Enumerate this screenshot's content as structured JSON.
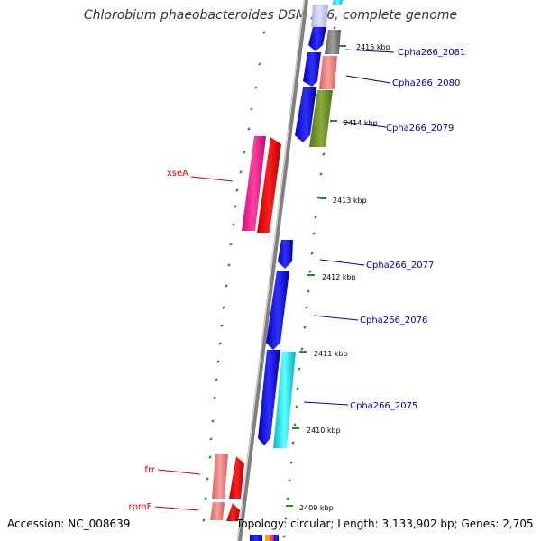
{
  "map": {
    "title": "Chlorobium phaeobacteroides DSM 266, complete genome",
    "accession": "Accession: NC_008639",
    "topology": "Topology: circular; Length: 3,133,902 bp; Genes: 2,705"
  },
  "kbp_labels": [
    "2415 kbp",
    "2414 kbp",
    "2413 kbp",
    "2412 kbp",
    "2411 kbp",
    "2410 kbp",
    "2409 kbp"
  ],
  "genes_left": [
    "xseA",
    "frr",
    "rpmE"
  ],
  "genes_right": [
    "Cpha266_2081",
    "Cpha266_2080",
    "Cpha266_2079",
    "Cpha266_2077",
    "Cpha266_2076",
    "Cpha266_2075"
  ],
  "colors": {
    "blue": "#1010e8",
    "red": "#ff0000",
    "magenta": "#ff1493",
    "salmon": "#f08080",
    "cyan": "#00e5ee",
    "olive": "#6b8e23",
    "gray": "#808080",
    "lavender": "#c8c8f0",
    "backbone": "#808080",
    "tick_green": "#1f8f1f",
    "label_red": "#cc0000",
    "label_blue": "#0000aa"
  }
}
